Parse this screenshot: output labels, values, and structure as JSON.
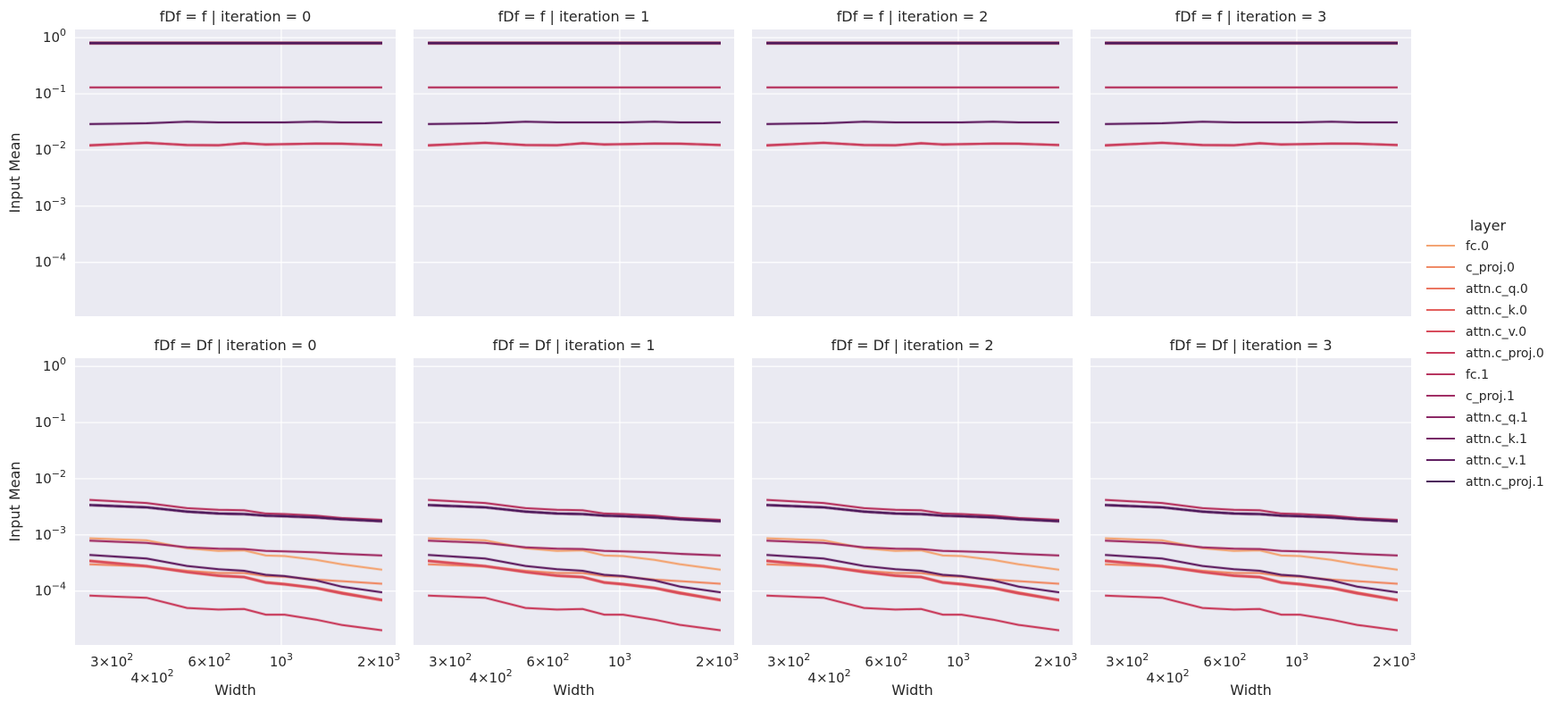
{
  "chart_data": {
    "type": "line",
    "ylabel": "Input Mean",
    "xlabel": "Width",
    "xscale": "log",
    "yscale": "log",
    "xlim": [
      231,
      2254
    ],
    "ylim": [
      1.1e-05,
      1.4
    ],
    "grid": true,
    "background": "#eaeaf2",
    "x_ticks": [
      {
        "value": 300,
        "mant": "3",
        "exp": "2"
      },
      {
        "value": 400,
        "mant": "4",
        "exp": "2"
      },
      {
        "value": 600,
        "mant": "6",
        "exp": "2"
      },
      {
        "value": 1000,
        "mant": "",
        "exp": "3"
      },
      {
        "value": 2000,
        "mant": "2",
        "exp": "3"
      }
    ],
    "y_ticks": [
      {
        "value": 1,
        "exp": "0"
      },
      {
        "value": 0.1,
        "exp": "−1"
      },
      {
        "value": 0.01,
        "exp": "−2"
      },
      {
        "value": 0.001,
        "exp": "−3"
      },
      {
        "value": 0.0001,
        "exp": "−4"
      }
    ],
    "legend": {
      "title": "layer",
      "placement": "right",
      "entries": [
        {
          "name": "fc.0",
          "color": "#f3a574"
        },
        {
          "name": "c_proj.0",
          "color": "#ef8b67"
        },
        {
          "name": "attn.c_q.0",
          "color": "#eb7661"
        },
        {
          "name": "attn.c_k.0",
          "color": "#e3605d"
        },
        {
          "name": "attn.c_v.0",
          "color": "#d84c5c"
        },
        {
          "name": "attn.c_proj.0",
          "color": "#c93d5d"
        },
        {
          "name": "fc.1",
          "color": "#b73560"
        },
        {
          "name": "c_proj.1",
          "color": "#a12f65"
        },
        {
          "name": "attn.c_q.1",
          "color": "#8c2966"
        },
        {
          "name": "attn.c_k.1",
          "color": "#772466"
        },
        {
          "name": "attn.c_v.1",
          "color": "#612062"
        },
        {
          "name": "attn.c_proj.1",
          "color": "#4c1b5c"
        }
      ]
    },
    "x": [
      256,
      384,
      512,
      640,
      768,
      896,
      1024,
      1280,
      1536,
      2048
    ],
    "rows": {
      "f": {
        "fc.0": [
          0.8,
          0.8,
          0.8,
          0.8,
          0.8,
          0.8,
          0.8,
          0.8,
          0.8,
          0.8
        ],
        "c_proj.0": [
          0.8,
          0.8,
          0.8,
          0.8,
          0.8,
          0.8,
          0.8,
          0.8,
          0.8,
          0.8
        ],
        "attn.c_q.0": [
          0.8,
          0.8,
          0.8,
          0.8,
          0.8,
          0.8,
          0.8,
          0.8,
          0.8,
          0.8
        ],
        "attn.c_k.0": [
          0.8,
          0.8,
          0.8,
          0.8,
          0.8,
          0.8,
          0.8,
          0.8,
          0.8,
          0.8
        ],
        "attn.c_v.0": [
          0.012,
          0.0135,
          0.0122,
          0.0121,
          0.0133,
          0.0125,
          0.0127,
          0.013,
          0.013,
          0.0122
        ],
        "attn.c_proj.0": [
          0.0122,
          0.0134,
          0.0123,
          0.0122,
          0.0131,
          0.0126,
          0.0127,
          0.013,
          0.0129,
          0.0123
        ],
        "fc.1": [
          0.13,
          0.13,
          0.13,
          0.13,
          0.13,
          0.13,
          0.13,
          0.13,
          0.13,
          0.13
        ],
        "c_proj.1": [
          0.8,
          0.8,
          0.8,
          0.8,
          0.8,
          0.8,
          0.8,
          0.8,
          0.8,
          0.8
        ],
        "attn.c_q.1": [
          0.8,
          0.8,
          0.8,
          0.8,
          0.8,
          0.8,
          0.8,
          0.8,
          0.8,
          0.8
        ],
        "attn.c_k.1": [
          0.8,
          0.8,
          0.8,
          0.8,
          0.8,
          0.8,
          0.8,
          0.8,
          0.8,
          0.8
        ],
        "attn.c_v.1": [
          0.029,
          0.03,
          0.032,
          0.031,
          0.031,
          0.031,
          0.031,
          0.032,
          0.031,
          0.031
        ],
        "attn.c_proj.1": [
          0.8,
          0.8,
          0.8,
          0.8,
          0.8,
          0.8,
          0.8,
          0.8,
          0.8,
          0.8
        ]
      },
      "Df": {
        "fc.0": [
          0.00087,
          0.0008,
          0.00058,
          0.00052,
          0.00053,
          0.00043,
          0.00042,
          0.00036,
          0.0003,
          0.00024
        ],
        "c_proj.0": [
          0.0003,
          0.000275,
          0.00023,
          0.00021,
          0.00021,
          0.000185,
          0.00018,
          0.00016,
          0.00015,
          0.000135
        ],
        "attn.c_q.0": [
          0.00035,
          0.00028,
          0.00022,
          0.00019,
          0.00018,
          0.000145,
          0.000135,
          0.000115,
          9.5e-05,
          7e-05
        ],
        "attn.c_k.0": [
          0.00034,
          0.000275,
          0.000215,
          0.000185,
          0.000175,
          0.00014,
          0.00013,
          0.000112,
          9e-05,
          6.8e-05
        ],
        "attn.c_v.0": [
          0.000345,
          0.00028,
          0.00022,
          0.00019,
          0.000178,
          0.000142,
          0.000133,
          0.000114,
          9.2e-05,
          7e-05
        ],
        "attn.c_proj.0": [
          8.3e-05,
          7.6e-05,
          5e-05,
          4.7e-05,
          4.8e-05,
          3.8e-05,
          3.8e-05,
          3.1e-05,
          2.5e-05,
          2e-05
        ],
        "fc.1": [
          0.0042,
          0.0037,
          0.003,
          0.0028,
          0.00275,
          0.0024,
          0.00235,
          0.0022,
          0.002,
          0.00185
        ],
        "c_proj.1": [
          0.00079,
          0.00072,
          0.0006,
          0.00057,
          0.00056,
          0.00052,
          0.00051,
          0.00049,
          0.00046,
          0.00043
        ],
        "attn.c_q.1": [
          0.0034,
          0.0031,
          0.0026,
          0.0024,
          0.00235,
          0.0022,
          0.00215,
          0.00205,
          0.0019,
          0.00175
        ],
        "attn.c_k.1": [
          0.0034,
          0.0031,
          0.0026,
          0.0024,
          0.00235,
          0.0022,
          0.00215,
          0.00205,
          0.0019,
          0.00175
        ],
        "attn.c_v.1": [
          0.00044,
          0.00038,
          0.00028,
          0.000245,
          0.00023,
          0.000195,
          0.000185,
          0.000155,
          0.00012,
          9.5e-05
        ],
        "attn.c_proj.1": [
          0.0034,
          0.0031,
          0.0026,
          0.0024,
          0.00235,
          0.0022,
          0.00215,
          0.00205,
          0.0019,
          0.00175
        ]
      }
    },
    "facets": [
      {
        "title": "fDf = f | iteration = 0",
        "row": "f"
      },
      {
        "title": "fDf = f | iteration = 1",
        "row": "f"
      },
      {
        "title": "fDf = f | iteration = 2",
        "row": "f"
      },
      {
        "title": "fDf = f | iteration = 3",
        "row": "f"
      },
      {
        "title": "fDf = Df | iteration = 0",
        "row": "Df"
      },
      {
        "title": "fDf = Df | iteration = 1",
        "row": "Df"
      },
      {
        "title": "fDf = Df | iteration = 2",
        "row": "Df"
      },
      {
        "title": "fDf = Df | iteration = 3",
        "row": "Df"
      }
    ]
  }
}
